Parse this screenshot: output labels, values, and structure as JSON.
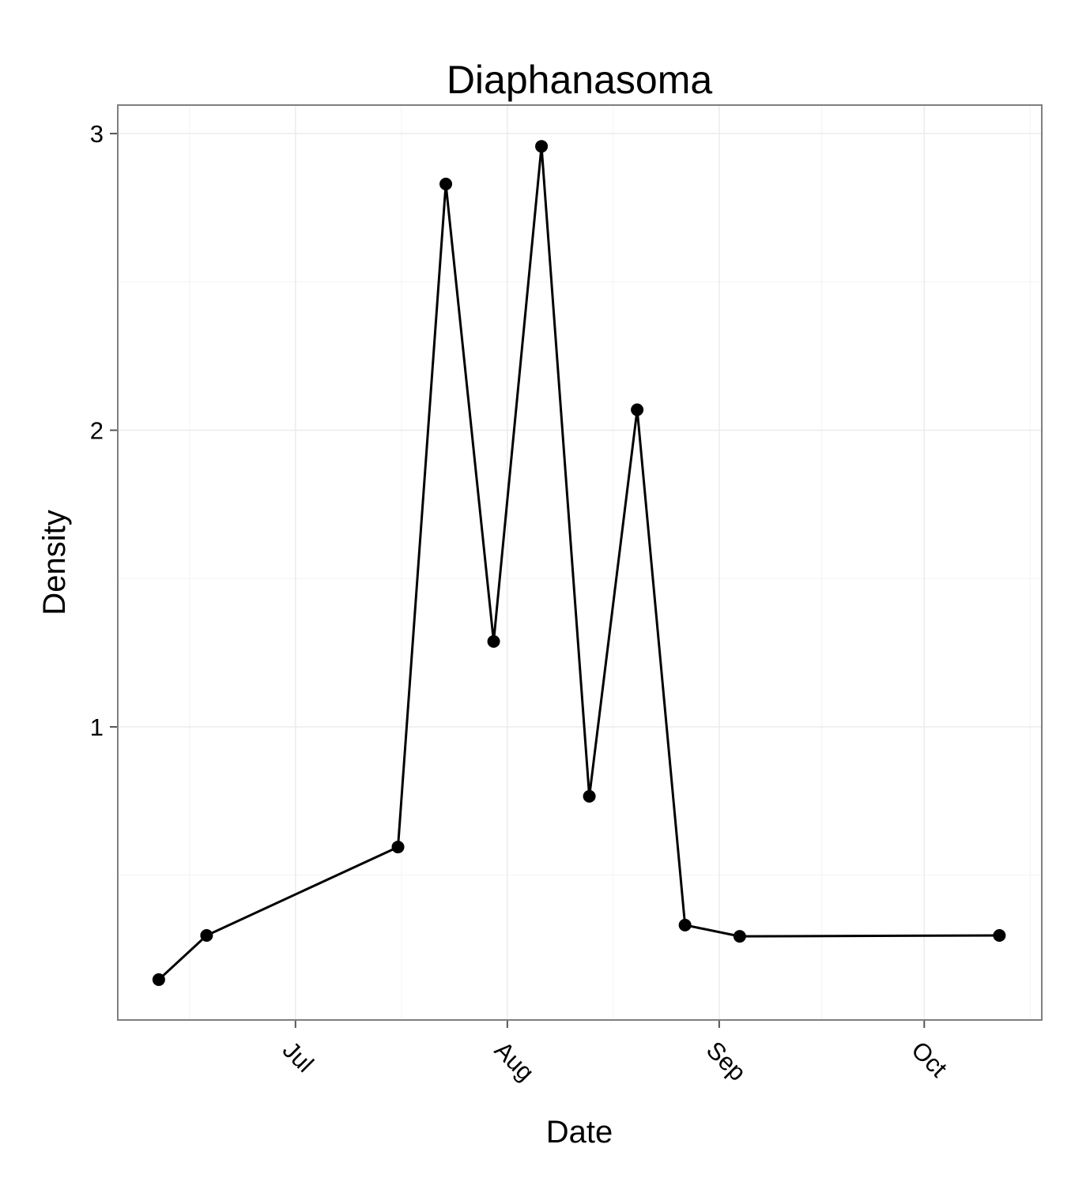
{
  "chart_data": {
    "type": "line",
    "title": "Diaphanasoma",
    "x_label": "Date",
    "y_label": "Density",
    "x": [
      -20,
      -13,
      15,
      22,
      29,
      36,
      43,
      50,
      57,
      65,
      103
    ],
    "series": [
      {
        "color": "#000000",
        "values": [
          0.148,
          0.297,
          0.595,
          2.83,
          1.288,
          2.957,
          0.766,
          2.069,
          0.332,
          0.294,
          0.297
        ]
      }
    ],
    "xlim": [
      -26,
      109.2
    ],
    "xticks": [
      {
        "value": 0,
        "label": "Jul"
      },
      {
        "value": 31,
        "label": "Aug"
      },
      {
        "value": 62,
        "label": "Sep"
      },
      {
        "value": 92,
        "label": "Oct"
      }
    ],
    "ylim": [
      0.012,
      3.096
    ],
    "yticks": [
      1,
      2,
      3
    ],
    "grid": true
  }
}
